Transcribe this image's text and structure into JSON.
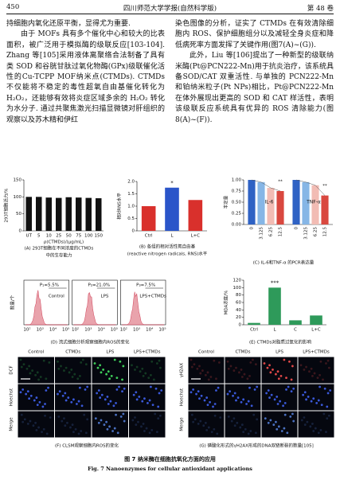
{
  "header": {
    "page": "450",
    "journal": "四川师范大学学报(自然科学版)",
    "volume": "第 48 卷"
  },
  "body": {
    "left": [
      "持细胞内氧化还原平衡，显得尤为重要.",
      "由于 MOFs 具有多个催化中心和较大的比表面积，被广泛用于模拟酶的级联反应[103-104]. Zhang 等[105]采用液体离聚络合法制备了具有类 SOD 和谷胱甘肽过氧化物酶(GPx)级联催化活性的Cu-TCPP MOF纳米点(CTMDs). CTMDs 不仅能将不稳定的毒性超氧自由基催化转化为 H₂O₂，还能够有效将炎症区域多余的 H₂O₂ 转化为水分子. 通过共聚焦激光扫描显微镜对肝组织的观察以及苏木精和伊红"
    ],
    "right": [
      "染色图像的分析，证实了 CTMDs 在有效清除细胞内 ROS、保护细胞组分以及减轻全身炎症和降低病死率方面发挥了关键作用(图7(A)~(G)).",
      "此外，Liu 等[106]提出了一种新型的级联纳米酶(Pt@PCN222-Mn)用于抗炎治疗，该系统具备SOD/CAT 双重活性. 与单独的 PCN222-Mn 和铂纳米粒子(Pt NPs)相比，Pt@PCN222-Mn 在体外展现出更高的 SOD 和 CAT 样活性，表明该级联反应系统具有优异的 ROS 清除能力(图8(A)~(F))."
    ]
  },
  "chart_data": [
    {
      "type": "bar",
      "ylabel": "293T细胞活力/%",
      "xlabel": "ρ(CTMDs)/(μg/mL)",
      "categories": [
        "UT",
        "5",
        "10",
        "25",
        "50",
        "75",
        "100",
        "150"
      ],
      "values": [
        100,
        100,
        98,
        97,
        99,
        98,
        97,
        96
      ],
      "color": "#111111",
      "ylim": [
        0,
        150
      ],
      "yticks": [
        0,
        50,
        100,
        150
      ],
      "caption": [
        "(A) 293T细胞在不同浓度的CTMDs",
        "中的生存能力"
      ]
    },
    {
      "type": "bar",
      "ylabel": "相对RNS水平",
      "categories": [
        "Ctrl",
        "L",
        "L+C"
      ],
      "values": [
        1.0,
        1.75,
        1.25
      ],
      "colors": [
        "#d9302c",
        "#2a55c9",
        "#d9302c"
      ],
      "ylim": [
        0,
        2.0
      ],
      "yticks": [
        0,
        {
          "value": 0.5,
          "label": "0.5"
        },
        {
          "value": 1.0,
          "label": "1.0"
        },
        {
          "value": 1.5,
          "label": "1.5"
        },
        {
          "value": 2.0,
          "label": "2.0"
        }
      ],
      "annotation": "*",
      "caption": [
        "(B) 各组的相对活性氮自由基",
        "(reactive nitrogen radicals, RNS)水平"
      ]
    },
    {
      "type": "grouped_bar",
      "ylabel": "半定量",
      "categories": [
        "0",
        "3.125",
        "6.25",
        "12.5"
      ],
      "colors": [
        "#2f62c4",
        "#86b6e6",
        "#f2bcb4",
        "#d9483f"
      ],
      "series": [
        {
          "name": "IL-6",
          "values": [
            1.0,
            0.95,
            0.82,
            0.75
          ]
        },
        {
          "name": "TNF-α",
          "values": [
            1.0,
            0.95,
            0.88,
            0.65
          ]
        }
      ],
      "ylim": [
        0,
        1.0
      ],
      "yticks": [
        {
          "value": 0,
          "label": "0.00"
        },
        {
          "value": 0.25,
          "label": "0.25"
        },
        {
          "value": 0.5,
          "label": "0.50"
        },
        {
          "value": 0.75,
          "label": "0.75"
        },
        {
          "value": 1.0,
          "label": "1.00"
        }
      ],
      "annotation": "**",
      "caption": [
        "(C) IL-6和TNF-α 的PCR表达量"
      ]
    },
    {
      "type": "flow",
      "ylabel": "数量/个",
      "xtick_labels": [
        "10²",
        "10³",
        "10⁴",
        "10⁵"
      ],
      "panels": [
        {
          "gate": "P₁=5.5%",
          "label": "Control"
        },
        {
          "gate": "P₂=21.0%",
          "label": "LPS"
        },
        {
          "gate": "P₃=7.5%",
          "label": "LPS+CTMDs"
        }
      ],
      "caption": [
        "(D) 流式细胞分析观察细胞内ROS的变化"
      ]
    },
    {
      "type": "bar",
      "ylabel": "MDA浓度/%",
      "categories": [
        "Ctrl",
        "L",
        "C",
        "L+C"
      ],
      "values": [
        5,
        100,
        12,
        25
      ],
      "color": "#2e9a5a",
      "ylim": [
        0,
        120
      ],
      "yticks": [
        0,
        20,
        40,
        60,
        80,
        100,
        120
      ],
      "annotation": "***",
      "caption": [
        "(E) CTMDs对脂质过氧化的影响"
      ]
    },
    {
      "type": "image_grid",
      "columns": [
        "Control",
        "CTMDs",
        "LPS",
        "LPS+CTMDs"
      ],
      "rows": [
        "DCF",
        "Hoechst",
        "Merge"
      ],
      "caption": [
        "(F) CLSM观察细胞内ROS的变化"
      ]
    },
    {
      "type": "image_grid",
      "columns": [
        "Control",
        "CTMDs",
        "LPS",
        "LPS+CTMDs"
      ],
      "rows": [
        "γH2AX",
        "Hoechst",
        "Merge"
      ],
      "caption": [
        "(G) 磷酸化形式的γH2AX形成的DNA双链断裂的数量[105]"
      ]
    }
  ],
  "figure": {
    "caption_cn": "图 7  纳米酶在细胞抗氧化方面的应用",
    "caption_en": "Fig. 7  Nanoenzymes for cellular antioxidant applications"
  }
}
